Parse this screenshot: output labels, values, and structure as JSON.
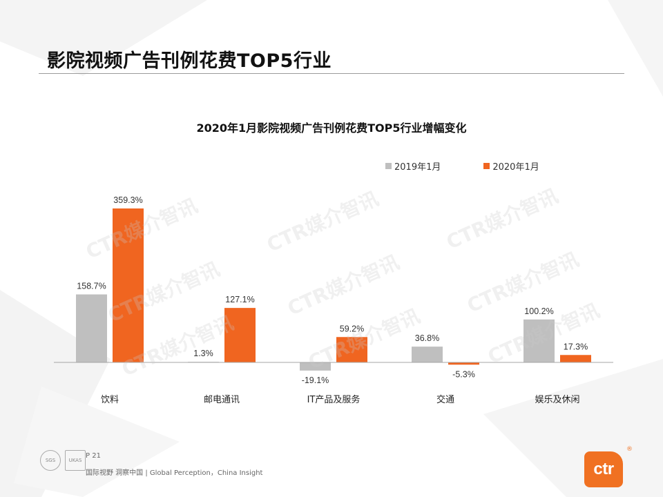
{
  "slide": {
    "title": "影院视频广告刊例花费TOP5行业",
    "watermark": "CTR媒介智讯",
    "footer": {
      "page": "P 21",
      "tagline": "国际视野  洞察中国 | Global Perception，China Insight"
    },
    "logo": {
      "text": "ctr",
      "mark": "®",
      "cert_sgs": "SGS",
      "cert_ukas": "UKAS"
    }
  },
  "colors": {
    "series_2019": "#bfbfbf",
    "series_2020": "#f06520",
    "axis": "#a6a6a6",
    "brand": "#f07122"
  },
  "chart_data": {
    "type": "bar",
    "title": "2020年1月影院视频广告刊例花费TOP5行业增幅变化",
    "categories": [
      "饮料",
      "邮电通讯",
      "IT产品及服务",
      "交通",
      "娱乐及休闲"
    ],
    "series": [
      {
        "name": "2019年1月",
        "values": [
          158.7,
          1.3,
          -19.1,
          36.8,
          100.2
        ],
        "labels": [
          "158.7%",
          "1.3%",
          "-19.1%",
          "36.8%",
          "100.2%"
        ]
      },
      {
        "name": "2020年1月",
        "values": [
          359.3,
          127.1,
          59.2,
          -5.3,
          17.3
        ],
        "labels": [
          "359.3%",
          "127.1%",
          "59.2%",
          "-5.3%",
          "17.3%"
        ]
      }
    ],
    "legend_position": "top-right",
    "grid": false,
    "ylim": [
      -30,
      370
    ]
  }
}
